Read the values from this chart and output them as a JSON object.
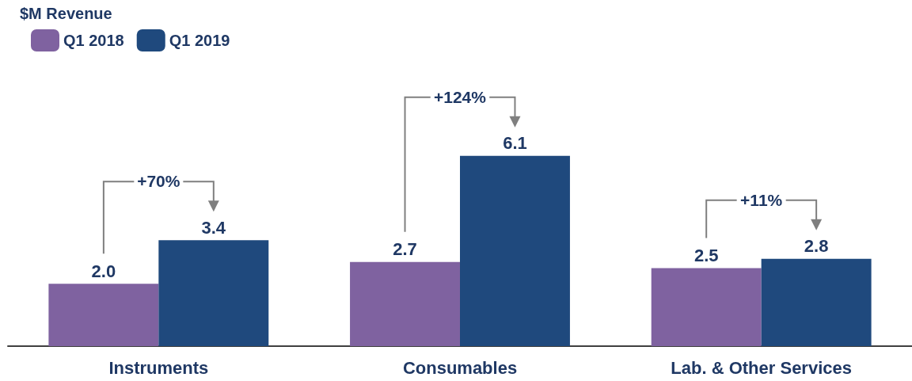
{
  "chart_data": {
    "type": "bar",
    "title": "$M Revenue",
    "categories": [
      "Instruments",
      "Consumables",
      "Lab. & Other Services"
    ],
    "series": [
      {
        "name": "Q1 2018",
        "color": "#7f62a0",
        "values": [
          2.0,
          2.7,
          2.5
        ],
        "value_labels": [
          "2.0",
          "2.7",
          "2.5"
        ]
      },
      {
        "name": "Q1 2019",
        "color": "#1f497d",
        "values": [
          3.4,
          6.1,
          2.8
        ],
        "value_labels": [
          "3.4",
          "6.1",
          "2.8"
        ]
      }
    ],
    "legend": "top left",
    "annotations": [
      "+70%",
      "+124%",
      "+11%"
    ]
  }
}
